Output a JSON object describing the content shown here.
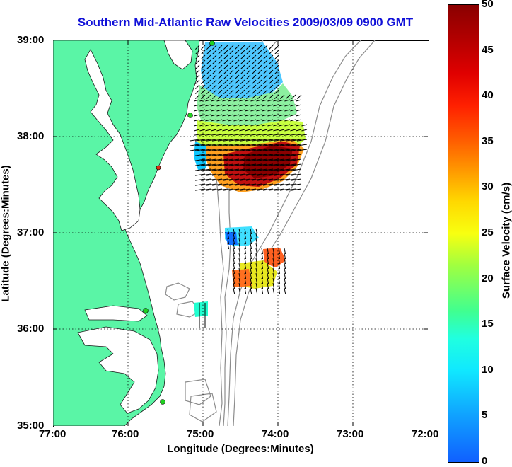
{
  "title": "Southern Mid-Atlantic Raw Velocities 2009/03/09 0900 GMT",
  "x_axis": {
    "label": "Longitude (Degrees:Minutes)",
    "ticks": [
      "77:00",
      "76:00",
      "75:00",
      "74:00",
      "73:00",
      "72:00"
    ]
  },
  "y_axis": {
    "label": "Latitude (Degrees:Minutes)",
    "ticks": [
      "39:00",
      "38:00",
      "37:00",
      "36:00",
      "35:00"
    ]
  },
  "colorbar": {
    "label": "Surface Velocity (cm/s)",
    "ticks": [
      "50",
      "45",
      "40",
      "35",
      "30",
      "25",
      "20",
      "15",
      "10",
      "5",
      "0"
    ],
    "min": 0,
    "max": 50,
    "colormap": "jet"
  },
  "colors": {
    "land": "#5af5a6",
    "title": "#1010d8",
    "bathymetry_contour": "#8c8c8c",
    "station_marker": "#20d020",
    "station_marker_inactive": "#e03010"
  },
  "map_extent": {
    "lon_min": -77,
    "lon_max": -72,
    "lat_min": 35,
    "lat_max": 39
  },
  "grid": "dotted",
  "chart_data": {
    "type": "heatmap",
    "title": "Southern Mid-Atlantic Raw Velocities 2009/03/09 0900 GMT",
    "xlabel": "Longitude (Degrees:Minutes)",
    "ylabel": "Latitude (Degrees:Minutes)",
    "xlim": [
      -77,
      -72
    ],
    "ylim": [
      35,
      39
    ],
    "zlabel": "Surface Velocity (cm/s)",
    "zlim": [
      0,
      50
    ],
    "regions": [
      {
        "lon": [
          -75.0,
          -74.0
        ],
        "lat": [
          38.3,
          39.0
        ],
        "speed_cm_s": 10
      },
      {
        "lon": [
          -74.6,
          -73.6
        ],
        "lat": [
          37.5,
          38.2
        ],
        "speed_cm_s": 47
      },
      {
        "lon": [
          -75.1,
          -74.4
        ],
        "lat": [
          37.8,
          38.2
        ],
        "speed_cm_s": 28
      },
      {
        "lon": [
          -74.7,
          -74.5
        ],
        "lat": [
          36.8,
          37.0
        ],
        "speed_cm_s": 6
      },
      {
        "lon": [
          -74.4,
          -74.0
        ],
        "lat": [
          36.5,
          36.7
        ],
        "speed_cm_s": 28
      },
      {
        "lon": [
          -75.0,
          -74.9
        ],
        "lat": [
          36.1,
          36.3
        ],
        "speed_cm_s": 12
      }
    ],
    "stations": [
      {
        "lon": -75.12,
        "lat": 38.97,
        "status": "active"
      },
      {
        "lon": -75.17,
        "lat": 38.23,
        "status": "active"
      },
      {
        "lon": -75.55,
        "lat": 37.67,
        "status": "inactive"
      },
      {
        "lon": -75.72,
        "lat": 36.2,
        "status": "active"
      },
      {
        "lon": -75.57,
        "lat": 35.27,
        "status": "active"
      }
    ]
  }
}
